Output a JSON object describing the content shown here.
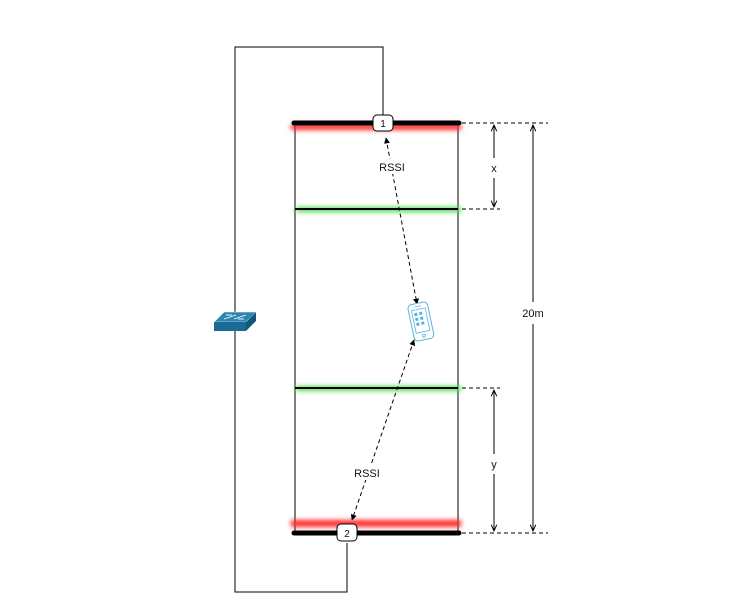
{
  "colors": {
    "line": "#000000",
    "red_glow": "#ff2a2a",
    "green_glow": "#4ddc4d",
    "switch_top": "#2a86b0",
    "switch_front": "#1a6a93",
    "phone_outline": "#5ab4e0"
  },
  "nodes": [
    {
      "id": "1",
      "label": "1"
    },
    {
      "id": "2",
      "label": "2"
    }
  ],
  "labels": {
    "rssi_top": "RSSI",
    "rssi_bottom": "RSSI",
    "dim_x": "x",
    "dim_y": "y",
    "dim_total": "20m"
  },
  "icons": {
    "switch": "network-switch-icon",
    "phone": "smartphone-icon"
  }
}
